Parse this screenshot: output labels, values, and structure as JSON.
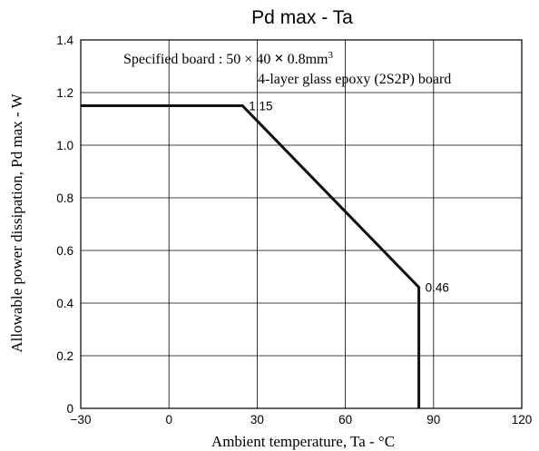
{
  "chart_data": {
    "type": "line",
    "title": "Pd max  -  Ta",
    "xlabel": "Ambient temperature,  Ta  -   °C",
    "ylabel": "Allowable power dissipation,  Pd max  -  W",
    "xlim": [
      -30,
      120
    ],
    "ylim": [
      0,
      1.4
    ],
    "x_ticks": [
      -30,
      0,
      30,
      60,
      90,
      120
    ],
    "x_tick_labels": [
      "−30",
      "0",
      "30",
      "60",
      "90",
      "120"
    ],
    "y_ticks": [
      0,
      0.2,
      0.4,
      0.6,
      0.8,
      1.0,
      1.2,
      1.4
    ],
    "y_tick_labels": [
      "0",
      "0.2",
      "0.4",
      "0.6",
      "0.8",
      "1.0",
      "1.2",
      "1.4"
    ],
    "grid": true,
    "series": [
      {
        "x": [
          -30,
          25,
          85,
          85
        ],
        "y": [
          1.15,
          1.15,
          0.46,
          0
        ]
      }
    ],
    "data_labels": [
      {
        "x": 25,
        "y": 1.15,
        "text": "1.15"
      },
      {
        "x": 85,
        "y": 0.46,
        "text": "0.46"
      }
    ],
    "annotation": {
      "line1_prefix": "Specified board : 50 × 40 ",
      "line1_cross": "×",
      "line1_dim": " 0.8mm",
      "line1_sup": "3",
      "line2": "4-layer glass epoxy (2S2P) board"
    },
    "colors": {
      "line": "#111111",
      "grid": "#000000",
      "background": "#ffffff"
    }
  }
}
